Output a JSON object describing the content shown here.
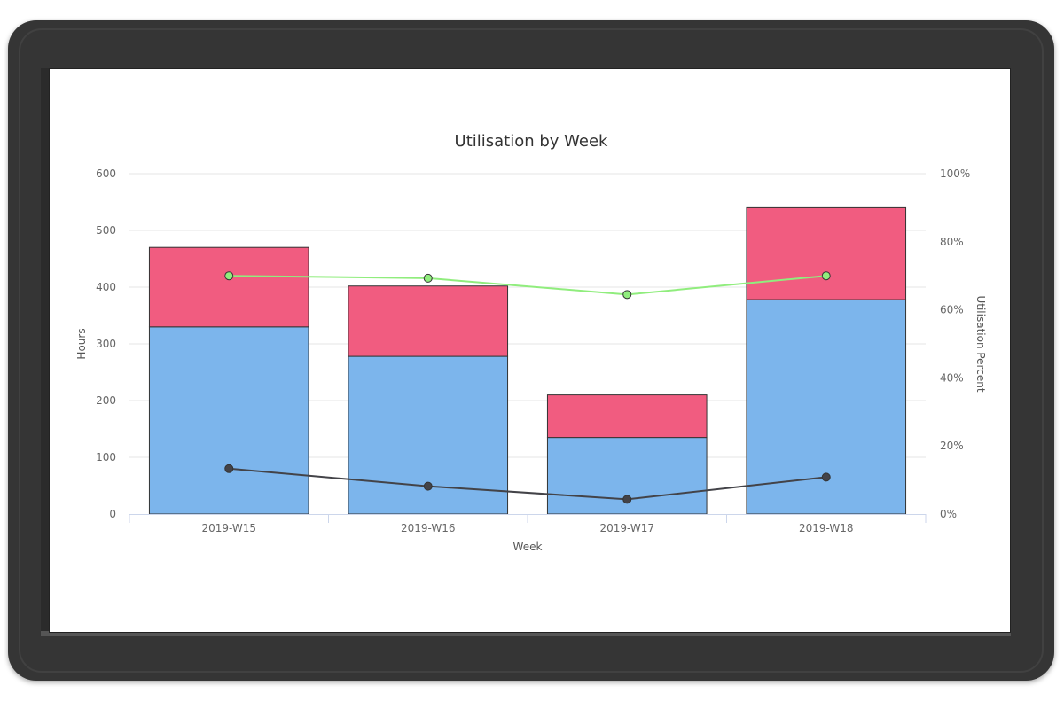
{
  "chart_data": {
    "type": "bar",
    "title": "Utilisation by Week",
    "xlabel": "Week",
    "ylabel": "Hours",
    "y2label": "Utilisation Percent",
    "categories": [
      "2019-W15",
      "2019-W16",
      "2019-W17",
      "2019-W18"
    ],
    "ylim": [
      0,
      600
    ],
    "y2lim": [
      0,
      100
    ],
    "yticks": [
      "0",
      "100",
      "200",
      "300",
      "400",
      "500",
      "600"
    ],
    "y2ticks": [
      "0%",
      "20%",
      "40%",
      "60%",
      "80%",
      "100%"
    ],
    "stacked": true,
    "grid": true,
    "series": [
      {
        "type": "bar",
        "axis": "left",
        "color": "#7cb5ec",
        "values": [
          330,
          278,
          135,
          378
        ]
      },
      {
        "type": "bar",
        "axis": "left",
        "color": "#f15c80",
        "values": [
          140,
          124,
          75,
          162
        ]
      },
      {
        "type": "line",
        "axis": "right",
        "color": "#90ed7d",
        "values": [
          70,
          69.3,
          64.5,
          70
        ]
      },
      {
        "type": "line",
        "axis": "left",
        "color": "#434348",
        "values": [
          80,
          49,
          26,
          65
        ]
      }
    ]
  }
}
